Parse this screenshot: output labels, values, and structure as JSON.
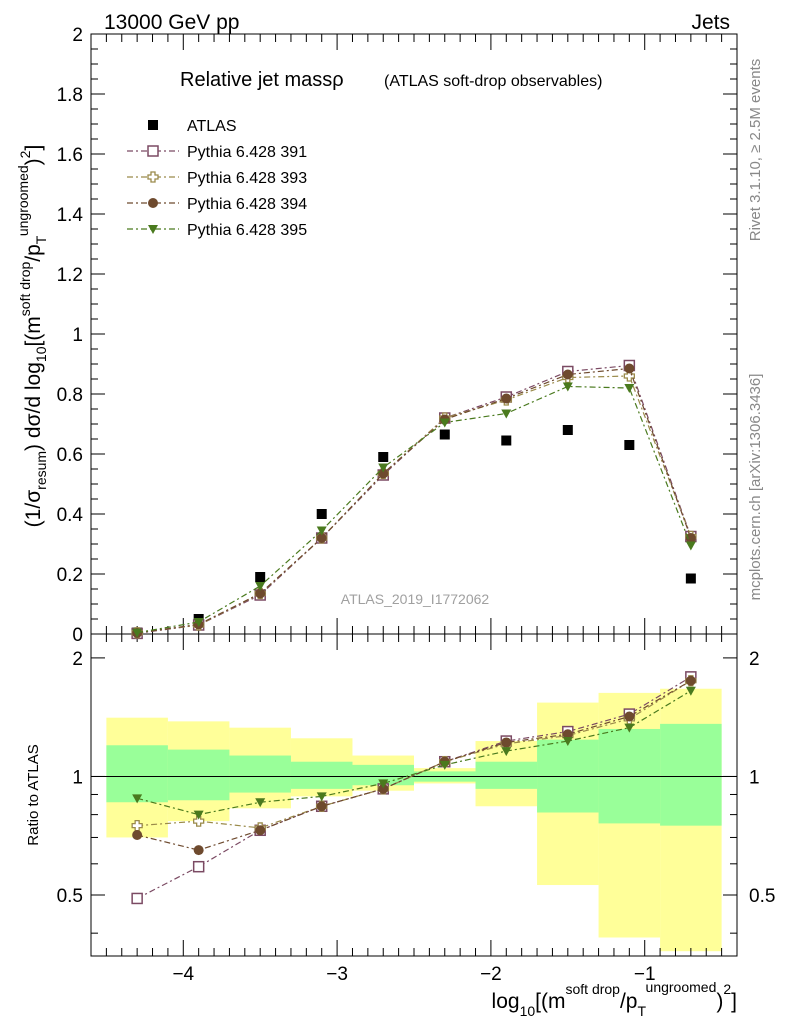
{
  "header": {
    "left_label": "13000 GeV pp",
    "right_label": "Jets"
  },
  "side_labels": {
    "rivet": "Rivet 3.1.10, ≥ 2.5M events",
    "mcplots": "mcplots.cern.ch [arXiv:1306.3436]"
  },
  "analysis_id": "ATLAS_2019_I1772062",
  "chart_data": [
    {
      "type": "scatter",
      "panel": "main",
      "title": "Relative jet massρ",
      "subtitle": "(ATLAS soft-drop observables)",
      "ylabel": "(1/σresum) dσ/d log10[(m^soft drop/pT^ungroomed)^2]",
      "ylim": [
        0,
        2
      ],
      "y_ticks": [
        "0",
        "0.2",
        "0.4",
        "0.6",
        "0.8",
        "1",
        "1.2",
        "1.4",
        "1.6",
        "1.8",
        "2"
      ],
      "xlim": [
        -4.6,
        -0.4
      ],
      "grid": false,
      "legend_position": "top-left",
      "x": [
        -4.3,
        -3.9,
        -3.5,
        -3.1,
        -2.7,
        -2.3,
        -1.9,
        -1.5,
        -1.1,
        -0.7
      ],
      "series": [
        {
          "name": "ATLAS",
          "color": "#000000",
          "marker": "square-filled",
          "values": [
            0.005,
            0.05,
            0.19,
            0.4,
            0.59,
            0.665,
            0.645,
            0.68,
            0.63,
            0.185
          ]
        },
        {
          "name": "Pythia 6.428 391",
          "color": "#7b4a63",
          "marker": "square-open",
          "values": [
            0.002,
            0.03,
            0.13,
            0.32,
            0.53,
            0.72,
            0.79,
            0.875,
            0.895,
            0.325
          ]
        },
        {
          "name": "Pythia 6.428 393",
          "color": "#9a8a4a",
          "marker": "cross-open",
          "values": [
            0.004,
            0.03,
            0.135,
            0.32,
            0.535,
            0.72,
            0.78,
            0.855,
            0.86,
            0.325
          ]
        },
        {
          "name": "Pythia 6.428 394",
          "color": "#6e4a2e",
          "marker": "circle-filled",
          "values": [
            0.0035,
            0.032,
            0.135,
            0.32,
            0.535,
            0.715,
            0.785,
            0.865,
            0.885,
            0.32
          ]
        },
        {
          "name": "Pythia 6.428 395",
          "color": "#4a7a1e",
          "marker": "triangle-down-filled",
          "values": [
            0.0045,
            0.04,
            0.16,
            0.345,
            0.555,
            0.705,
            0.735,
            0.825,
            0.82,
            0.295
          ]
        }
      ]
    },
    {
      "type": "line",
      "panel": "ratio",
      "ylabel": "Ratio to ATLAS",
      "xlabel": "log10[(m^soft drop/pT^ungroomed)^2]",
      "ylim": [
        0.35,
        2.3
      ],
      "y_ticks": [
        "0.5",
        "1",
        "2"
      ],
      "x_ticks": [
        "−4",
        "−3",
        "−2",
        "−1"
      ],
      "xlim": [
        -4.6,
        -0.4
      ],
      "reference_line": 1,
      "bin_edges": [
        -4.5,
        -4.1,
        -3.7,
        -3.3,
        -2.9,
        -2.5,
        -2.1,
        -1.7,
        -1.3,
        -0.9,
        -0.5
      ],
      "band_inner": {
        "name": "stat",
        "color": "#99ff99",
        "low": [
          0.86,
          0.87,
          0.91,
          0.93,
          0.95,
          0.97,
          0.93,
          0.81,
          0.76,
          0.75
        ],
        "high": [
          1.2,
          1.17,
          1.13,
          1.09,
          1.07,
          1.03,
          1.09,
          1.24,
          1.32,
          1.36
        ]
      },
      "band_outer": {
        "name": "total",
        "color": "#ffff99",
        "low": [
          0.7,
          0.77,
          0.83,
          0.89,
          0.92,
          0.96,
          0.84,
          0.53,
          0.39,
          0.36
        ],
        "high": [
          1.41,
          1.38,
          1.33,
          1.25,
          1.13,
          1.05,
          1.23,
          1.54,
          1.63,
          1.67
        ]
      },
      "x": [
        -4.3,
        -3.9,
        -3.5,
        -3.1,
        -2.7,
        -2.3,
        -1.9,
        -1.5,
        -1.1,
        -0.7
      ],
      "series": [
        {
          "name": "Pythia 6.428 391",
          "color": "#7b4a63",
          "marker": "square-open",
          "values": [
            0.49,
            0.59,
            0.73,
            0.84,
            0.93,
            1.09,
            1.23,
            1.3,
            1.44,
            1.79
          ]
        },
        {
          "name": "Pythia 6.428 393",
          "color": "#9a8a4a",
          "marker": "cross-open",
          "values": [
            0.75,
            0.77,
            0.74,
            0.84,
            0.93,
            1.09,
            1.21,
            1.27,
            1.4,
            1.75
          ]
        },
        {
          "name": "Pythia 6.428 394",
          "color": "#6e4a2e",
          "marker": "circle-filled",
          "values": [
            0.71,
            0.65,
            0.73,
            0.84,
            0.93,
            1.09,
            1.22,
            1.28,
            1.42,
            1.75
          ]
        },
        {
          "name": "Pythia 6.428 395",
          "color": "#4a7a1e",
          "marker": "triangle-down-filled",
          "values": [
            0.88,
            0.8,
            0.86,
            0.89,
            0.96,
            1.07,
            1.16,
            1.23,
            1.33,
            1.65
          ]
        }
      ]
    }
  ]
}
